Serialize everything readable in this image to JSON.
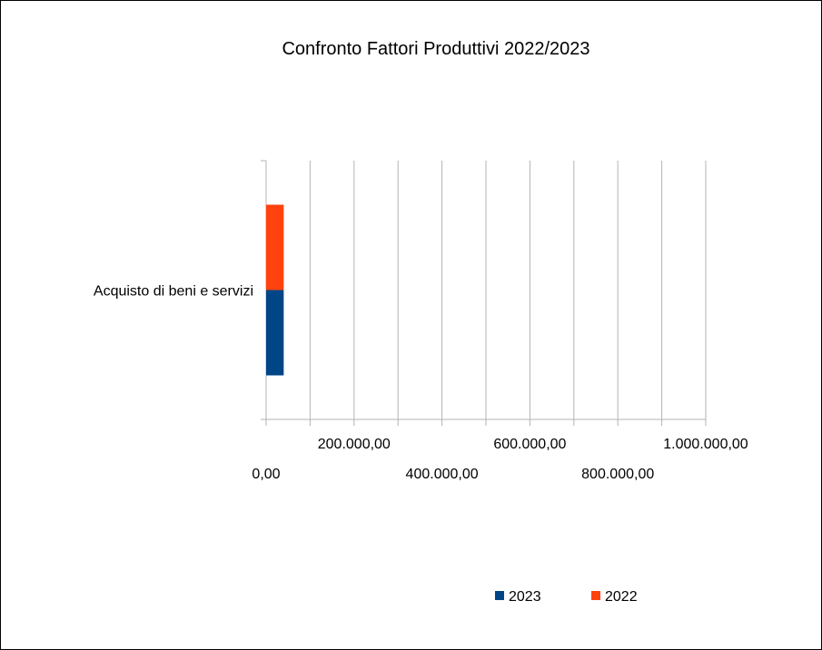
{
  "chart_data": {
    "type": "bar",
    "orientation": "horizontal",
    "title": "Confronto Fattori Produttivi 2022/2023",
    "categories": [
      "Acquisto di beni e servizi"
    ],
    "series": [
      {
        "name": "2023",
        "color": "#004586",
        "values": [
          40000
        ]
      },
      {
        "name": "2022",
        "color": "#ff420e",
        "values": [
          40000
        ]
      }
    ],
    "xlim": [
      0,
      1000000
    ],
    "x_ticks": [
      "0,00",
      "200.000,00",
      "400.000,00",
      "600.000,00",
      "800.000,00",
      "1.000.000,00"
    ],
    "grid": true,
    "legend": "bottom"
  }
}
